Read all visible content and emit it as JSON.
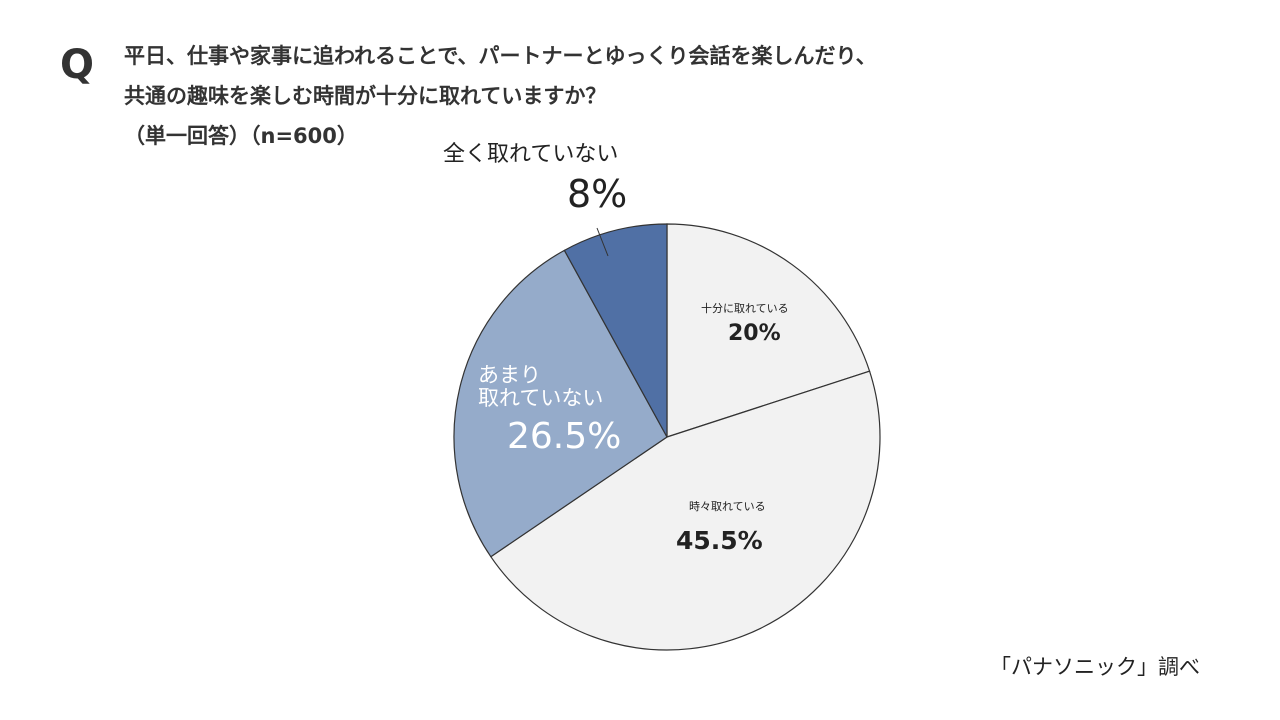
{
  "question": {
    "marker": "Q",
    "line1": "平日、仕事や家事に追われることで、パートナーとゆっくり会話を楽しんだり、",
    "line2": "共通の趣味を楽しむ時間が十分に取れていますか？",
    "line3": "（単一回答）（n=600）"
  },
  "source": "「パナソニック」調べ",
  "chart_data": {
    "type": "pie",
    "start": "top, clockwise",
    "slices": [
      {
        "label": "十分に取れている",
        "value": 20,
        "display": "20%",
        "color": "#f2f2f2"
      },
      {
        "label": "時々取れている",
        "value": 45.5,
        "display": "45.5%",
        "color": "#f2f2f2"
      },
      {
        "label": "あまり取れていない",
        "label_lines": [
          "あまり",
          "取れていない"
        ],
        "value": 26.5,
        "display": "26.5%",
        "color": "#95abca"
      },
      {
        "label": "全く取れていない",
        "value": 8,
        "display": "8%",
        "color": "#5070a5"
      }
    ]
  }
}
